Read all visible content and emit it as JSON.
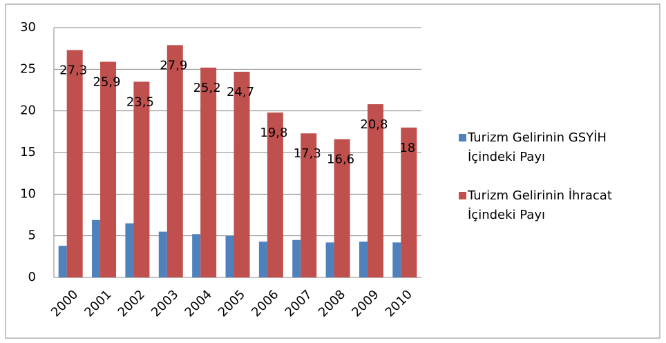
{
  "chart_data": {
    "type": "bar",
    "categories": [
      "2000",
      "2001",
      "2002",
      "2003",
      "2004",
      "2005",
      "2006",
      "2007",
      "2008",
      "2009",
      "2010"
    ],
    "series": [
      {
        "name": "Turizm Gelirinin GSYİH İçindeki Payı",
        "color": "#4f81bd",
        "values": [
          3.8,
          6.9,
          6.5,
          5.5,
          5.2,
          5.0,
          4.3,
          4.5,
          4.2,
          4.3,
          4.2
        ]
      },
      {
        "name": "Turizm Gelirinin İhracat İçindeki Payı",
        "color": "#c0504d",
        "values": [
          27.3,
          25.9,
          23.5,
          27.9,
          25.2,
          24.7,
          19.8,
          17.3,
          16.6,
          20.8,
          18
        ],
        "value_labels": [
          "27,3",
          "25,9",
          "23,5",
          "27,9",
          "25,2",
          "24,7",
          "19,8",
          "17,3",
          "16,6",
          "20,8",
          "18"
        ]
      }
    ],
    "ylim": [
      0,
      30
    ],
    "yticks": [
      0,
      5,
      10,
      15,
      20,
      25,
      30
    ],
    "grid": true,
    "legend": "right"
  }
}
